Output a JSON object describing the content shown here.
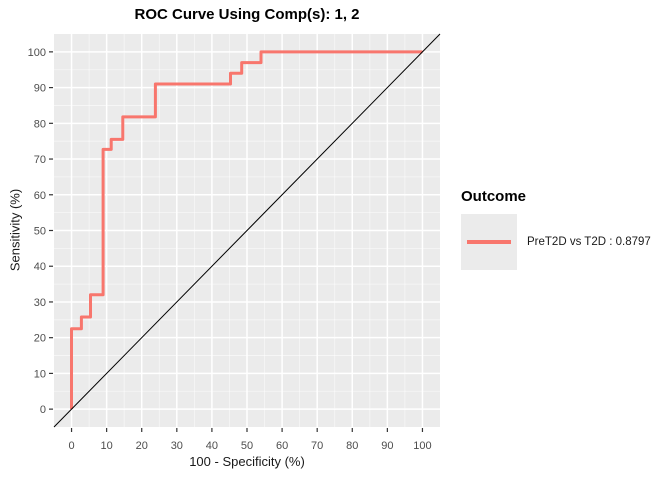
{
  "chart_data": {
    "type": "line",
    "title": "ROC Curve Using Comp(s): 1, 2",
    "xlabel": "100 - Specificity (%)",
    "ylabel": "Sensitivity (%)",
    "xlim": [
      -5,
      105
    ],
    "ylim": [
      -5,
      105
    ],
    "x_ticks": [
      0,
      10,
      20,
      30,
      40,
      50,
      60,
      70,
      80,
      90,
      100
    ],
    "y_ticks": [
      0,
      10,
      20,
      30,
      40,
      50,
      60,
      70,
      80,
      90,
      100
    ],
    "grid": true,
    "legend_position": "right",
    "panel_bg": "#EBEBEB",
    "grid_color": "#FFFFFF",
    "tick_color": "#333333",
    "tick_label_color": "#4D4D4D",
    "series": [
      {
        "name": "PreT2D vs T2D",
        "auc": 0.8797,
        "type": "step",
        "color": "#F8766D",
        "stroke_width": 3,
        "points": [
          [
            0,
            0
          ],
          [
            0,
            22.5
          ],
          [
            2.8,
            22.5
          ],
          [
            2.8,
            25.8
          ],
          [
            5.4,
            25.8
          ],
          [
            5.4,
            32
          ],
          [
            9,
            32
          ],
          [
            9,
            72.7
          ],
          [
            11.3,
            72.7
          ],
          [
            11.3,
            75.5
          ],
          [
            14.6,
            75.5
          ],
          [
            14.6,
            81.8
          ],
          [
            23.9,
            81.8
          ],
          [
            23.9,
            91
          ],
          [
            45.3,
            91
          ],
          [
            45.3,
            94
          ],
          [
            48.5,
            94
          ],
          [
            48.5,
            97
          ],
          [
            54,
            97
          ],
          [
            54,
            100
          ],
          [
            100,
            100
          ]
        ]
      },
      {
        "name": "chance-diagonal",
        "type": "line",
        "color": "#000000",
        "stroke_width": 1,
        "points": [
          [
            -5,
            -5
          ],
          [
            105,
            105
          ]
        ]
      }
    ],
    "legend": {
      "title": "Outcome",
      "entries": [
        {
          "label": "PreT2D vs T2D : 0.8797",
          "color": "#F8766D"
        }
      ]
    }
  }
}
